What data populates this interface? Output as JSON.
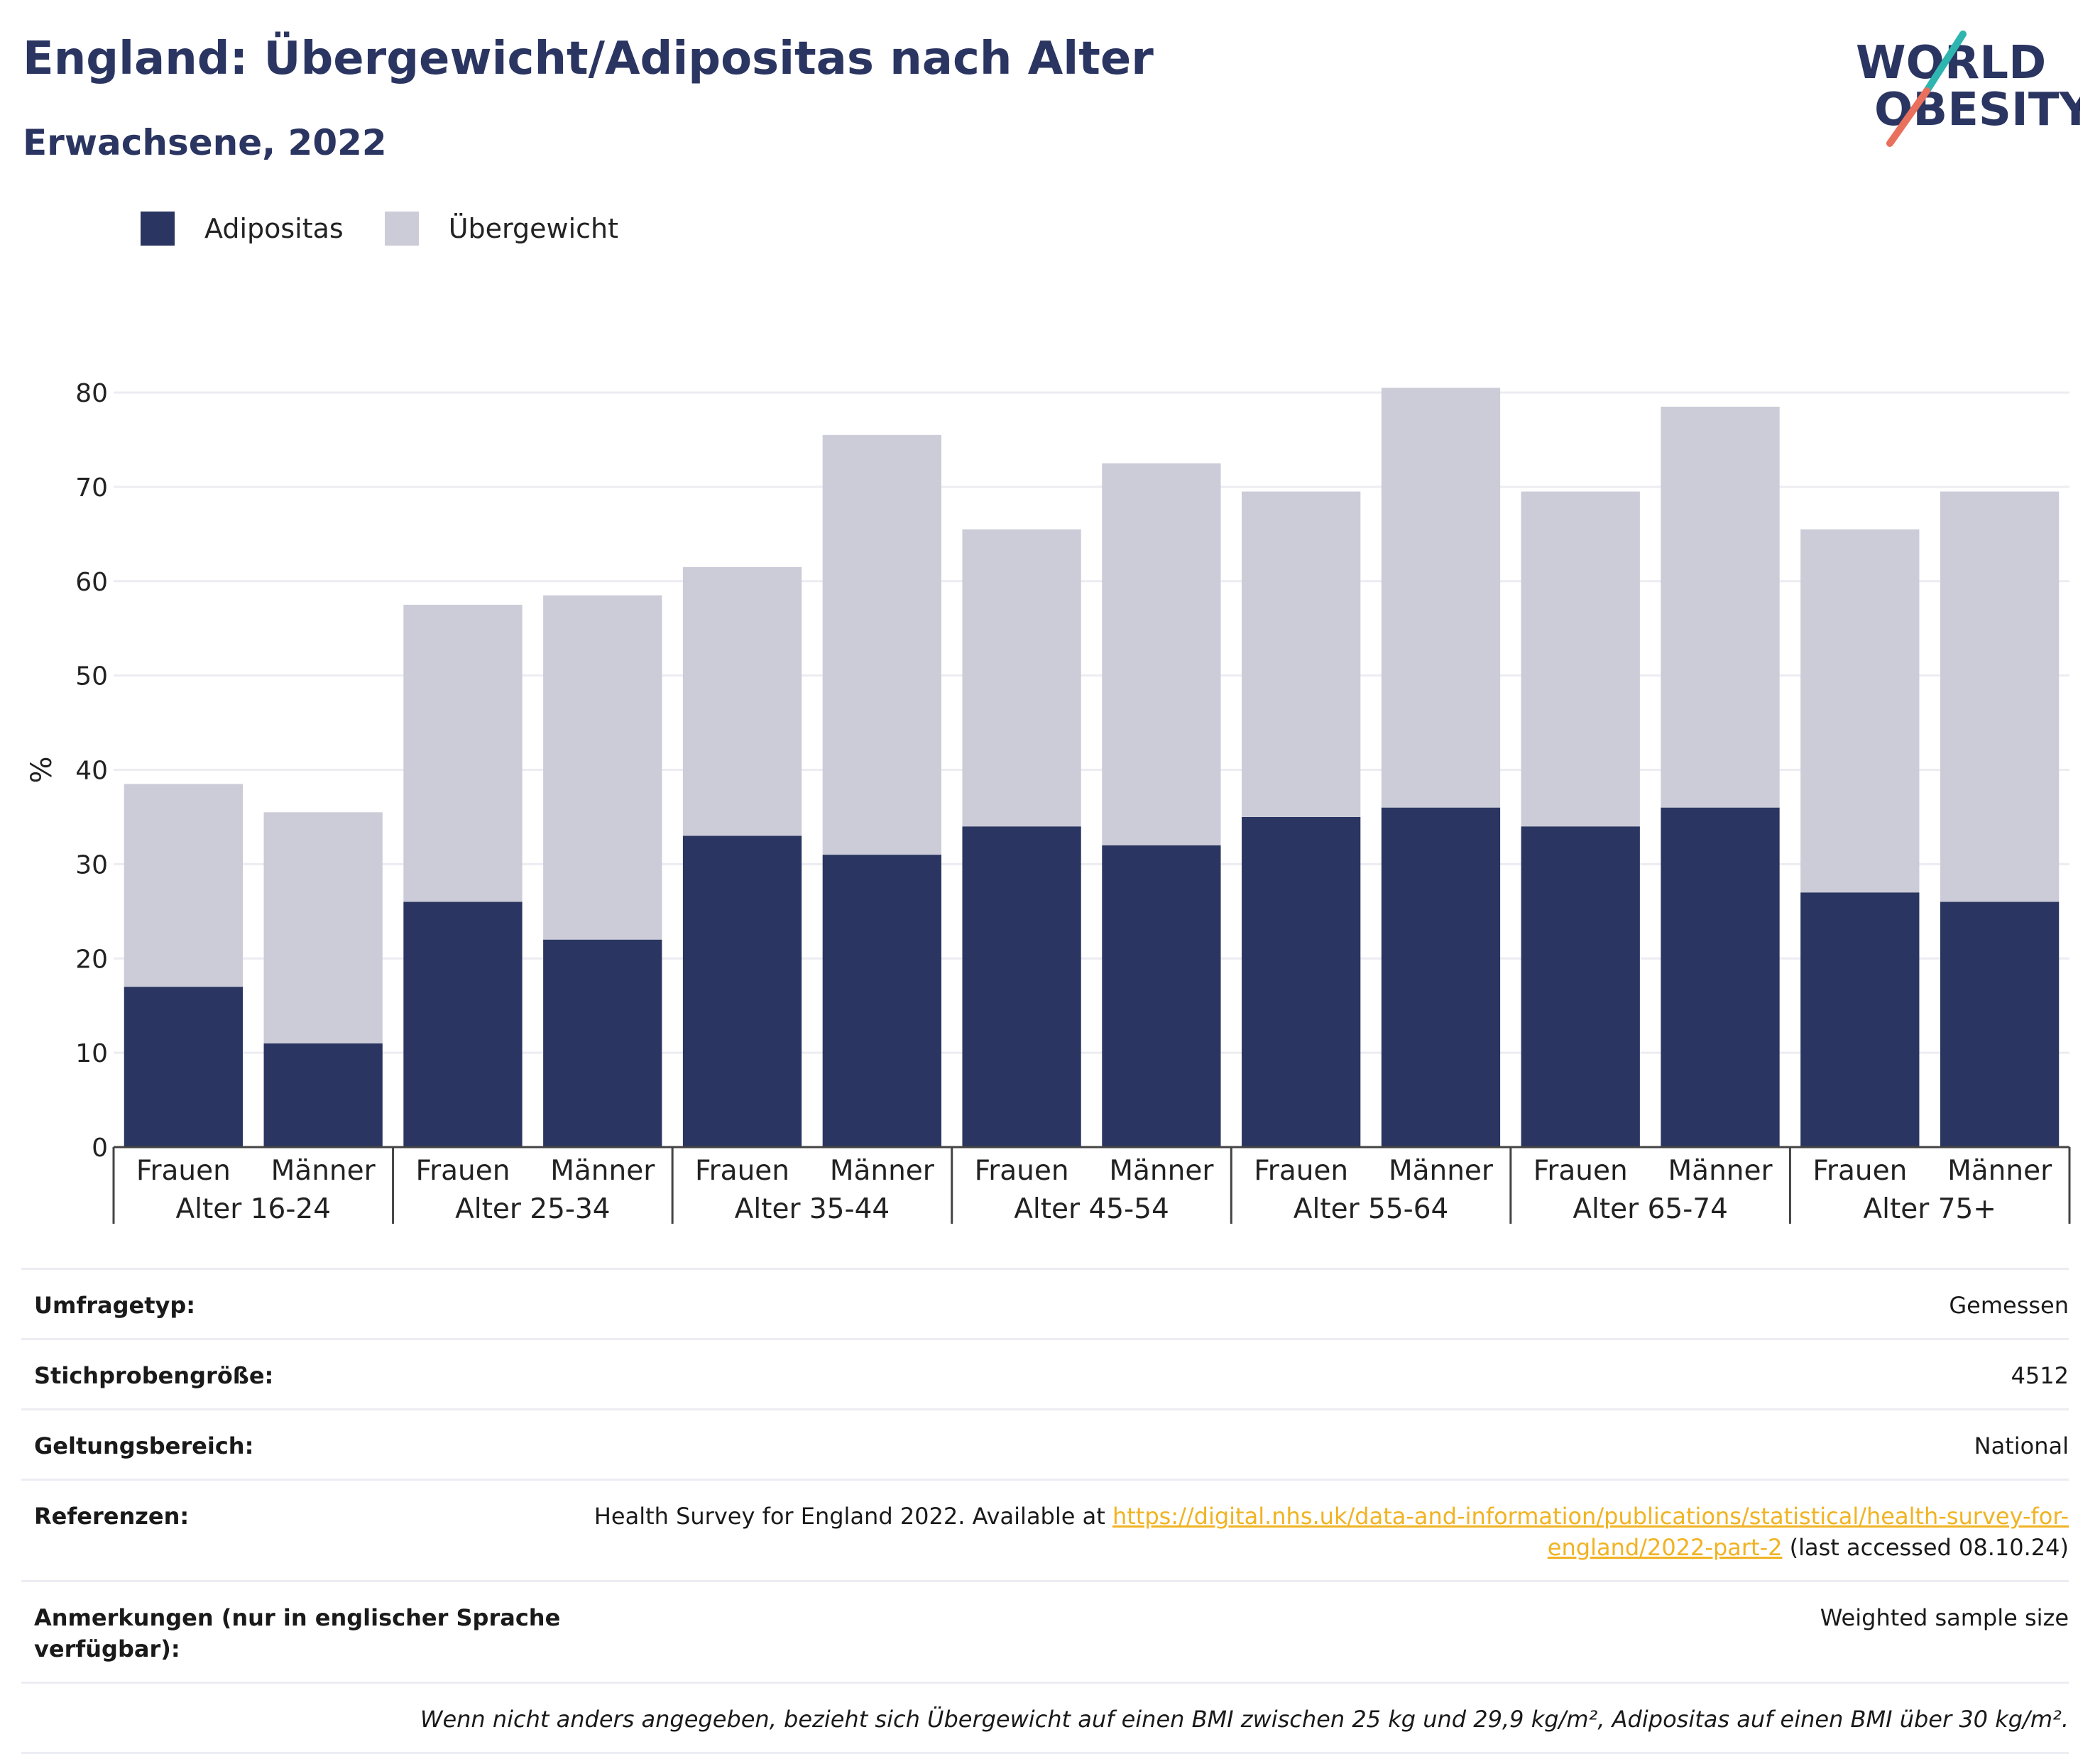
{
  "header": {
    "title": "England: Übergewicht/Adipositas nach Alter",
    "subtitle": "Erwachsene, 2022"
  },
  "logo": {
    "line1": "WORLD",
    "line2": "OBESITY"
  },
  "colors": {
    "adipositas": "#2a3561",
    "uebergewicht": "#cbccd8",
    "accent_teal": "#2fb5b0",
    "accent_red": "#e9705c",
    "link": "#f0b323"
  },
  "legend": [
    {
      "label": "Adipositas",
      "color": "#2a3561"
    },
    {
      "label": "Übergewicht",
      "color": "#cbccd8"
    }
  ],
  "chart_data": {
    "type": "bar",
    "stacked": true,
    "groups": [
      "Alter 16-24",
      "Alter 25-34",
      "Alter 35-44",
      "Alter 45-54",
      "Alter 55-64",
      "Alter 65-74",
      "Alter 75+"
    ],
    "sexes": [
      "Frauen",
      "Männer"
    ],
    "series": [
      {
        "name": "Adipositas",
        "values": [
          17,
          11,
          26,
          22,
          33,
          31,
          34,
          32,
          35,
          36,
          34,
          36,
          27,
          26
        ]
      },
      {
        "name": "Übergewicht",
        "values": [
          21.5,
          24.5,
          31.5,
          36.5,
          28.5,
          44.5,
          31.5,
          40.5,
          34.5,
          44.5,
          35.5,
          42.5,
          38.5,
          43.5
        ]
      }
    ],
    "ylabel": "%",
    "ylim": [
      0,
      80
    ],
    "yticks": [
      0,
      10,
      20,
      30,
      40,
      50,
      60,
      70,
      80
    ],
    "grid": true,
    "legend_position": "top-left"
  },
  "info": {
    "rows": [
      {
        "label": "Umfragetyp:",
        "value": "Gemessen"
      },
      {
        "label": "Stichprobengröße:",
        "value": "4512"
      },
      {
        "label": "Geltungsbereich:",
        "value": "National"
      }
    ],
    "references": {
      "label": "Referenzen:",
      "text_before": "Health Survey for England 2022. Available at",
      "link_line1": "https://digital.nhs.uk/data-and-information/publications/statistical/health-survey-for-",
      "link_line2": "england/2022-part-2",
      "text_after": "(last accessed 08.10.24)"
    },
    "notes": {
      "label_line1": "Anmerkungen (nur in englischer Sprache",
      "label_line2": "verfügbar):",
      "value": "Weighted sample size"
    },
    "footnote": "Wenn nicht anders angegeben, bezieht sich Übergewicht auf einen BMI zwischen 25 kg und 29,9 kg/m², Adipositas auf einen BMI über 30 kg/m²."
  }
}
